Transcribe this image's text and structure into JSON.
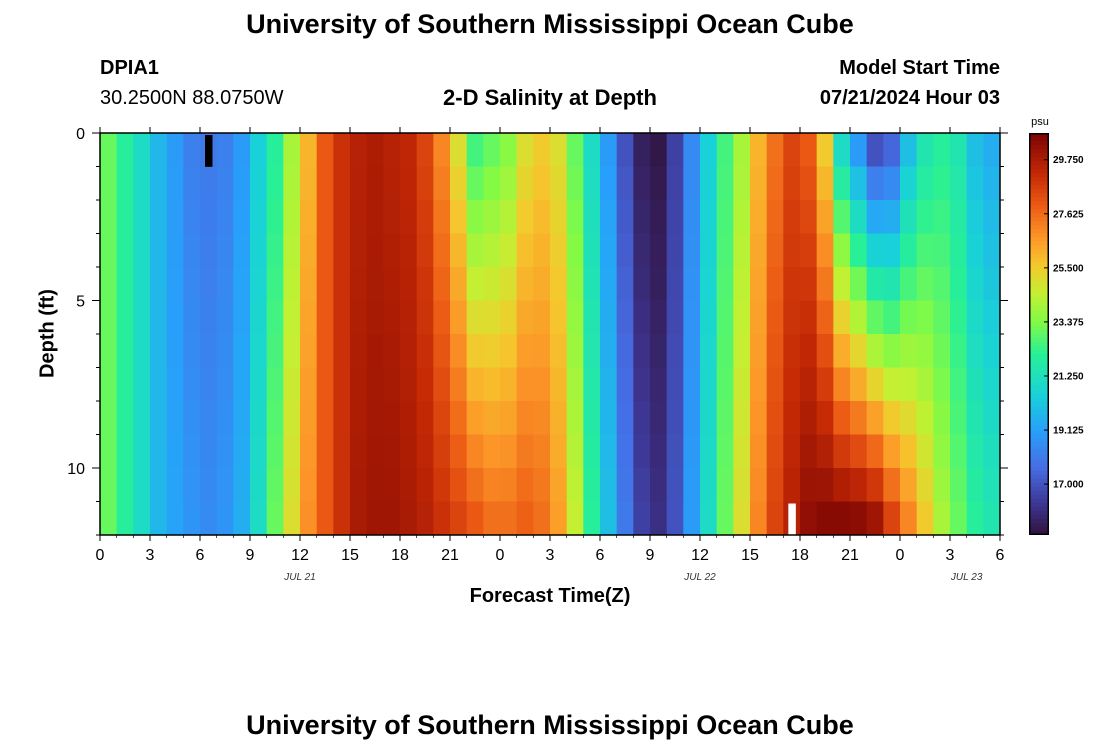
{
  "page_title_top": "University of Southern Mississippi Ocean Cube",
  "page_title_bottom": "University of Southern Mississippi Ocean Cube",
  "station": {
    "id": "DPIA1",
    "coords": "30.2500N  88.0750W"
  },
  "model_start": {
    "label": "Model Start Time",
    "value": "07/21/2024 Hour 03"
  },
  "chart_data": {
    "type": "heatmap",
    "title": "2-D Salinity at Depth",
    "xlabel": "Forecast Time(Z)",
    "ylabel": "Depth (ft)",
    "x_start_hour_of_day": 0,
    "x_hours": 54,
    "x_tick_step_hours": 3,
    "x_tick_labels": [
      "0",
      "3",
      "6",
      "9",
      "12",
      "15",
      "18",
      "21",
      "0",
      "3",
      "6",
      "9",
      "12",
      "15",
      "18",
      "21",
      "0",
      "3",
      "6"
    ],
    "date_labels": [
      {
        "text": "JUL 21",
        "hour": 12
      },
      {
        "text": "JUL 22",
        "hour": 36
      },
      {
        "text": "JUL 23",
        "hour": 52
      }
    ],
    "y_range_ft": [
      0,
      12
    ],
    "y_ticks": [
      0,
      5,
      10
    ],
    "colorbar": {
      "unit": "psu",
      "min": 15.0,
      "max": 30.8,
      "tick_values": [
        17.0,
        19.125,
        21.25,
        23.375,
        25.5,
        27.625,
        29.75
      ],
      "tick_labels": [
        "17.000",
        "19.125",
        "21.250",
        "23.375",
        "25.500",
        "27.625",
        "29.750"
      ]
    },
    "depth_rows_ft": [
      0.5,
      1.5,
      2.5,
      3.5,
      4.5,
      5.5,
      6.5,
      7.5,
      8.5,
      9.5,
      10.5,
      11.5
    ],
    "surface_profile_psu_hourly": [
      23,
      22,
      21,
      19.8,
      19,
      18.2,
      18,
      18.2,
      19,
      20.5,
      22,
      24,
      26,
      28,
      29,
      29.5,
      29.7,
      29.5,
      29.3,
      28.5,
      27,
      25,
      22.5,
      23,
      23.5,
      25,
      25.5,
      25,
      23,
      21,
      19,
      17,
      15.5,
      15.2,
      16.5,
      18.5,
      20.5,
      22.5,
      24,
      26,
      27.5,
      28.5,
      28,
      25.5,
      21,
      19,
      17,
      17.5,
      20,
      21.5,
      22,
      21.5,
      20,
      19.5
    ],
    "bottom_profile_psu_hourly": [
      23,
      22,
      21,
      19.8,
      19.2,
      18.8,
      18.5,
      18.8,
      19.5,
      21,
      23,
      25,
      26.8,
      28,
      29,
      29.8,
      30,
      30,
      29.8,
      29.5,
      29,
      28.5,
      28,
      27.5,
      27.5,
      27.8,
      27.5,
      26.5,
      24.5,
      22,
      20,
      18,
      16.5,
      16,
      17,
      19,
      21,
      23,
      25,
      27,
      28.5,
      29.5,
      30.3,
      30.5,
      30.5,
      30.4,
      30,
      28.5,
      27,
      25.5,
      24,
      23,
      22,
      21.5
    ],
    "missing_cells": [
      {
        "hour": 6,
        "depth_row": 0,
        "color": "#000000"
      },
      {
        "hour": 17,
        "depth_row": 11,
        "color": "#ffffff",
        "day_offset": 1
      }
    ]
  }
}
